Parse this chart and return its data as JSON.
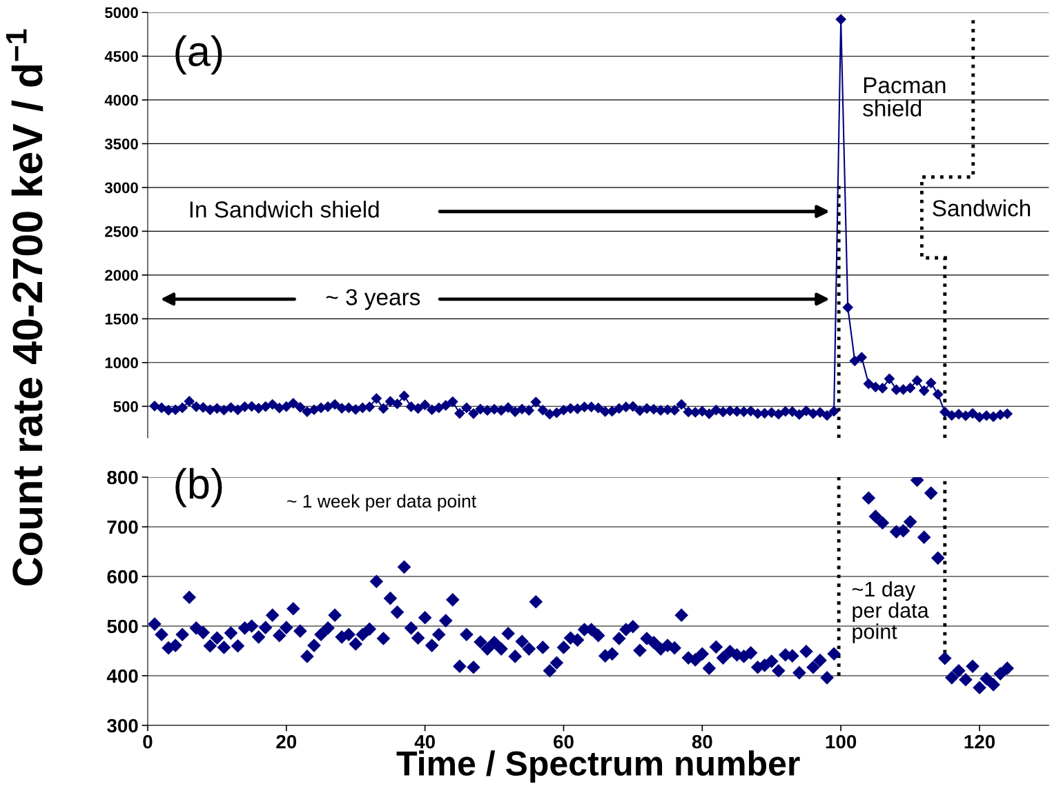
{
  "chart_data": [
    {
      "type": "line",
      "title": "(a)",
      "ylabel": "Count rate 40-2700 keV / d$^{−1}$",
      "marker": "diamond",
      "line_style": "solid",
      "grid": "y",
      "tick_labels": "y",
      "xlim": [
        0,
        130
      ],
      "ylim": [
        140,
        5000
      ],
      "yticks": [
        500,
        1000,
        1500,
        2000,
        2500,
        3000,
        3500,
        4000,
        4500,
        5000
      ],
      "x": [
        1,
        2,
        3,
        4,
        5,
        6,
        7,
        8,
        9,
        10,
        11,
        12,
        13,
        14,
        15,
        16,
        17,
        18,
        19,
        20,
        21,
        22,
        23,
        24,
        25,
        26,
        27,
        28,
        29,
        30,
        31,
        32,
        33,
        34,
        35,
        36,
        37,
        38,
        39,
        40,
        41,
        42,
        43,
        44,
        45,
        46,
        47,
        48,
        49,
        50,
        51,
        52,
        53,
        54,
        55,
        56,
        57,
        58,
        59,
        60,
        61,
        62,
        63,
        64,
        65,
        66,
        67,
        68,
        69,
        70,
        71,
        72,
        73,
        74,
        75,
        76,
        77,
        78,
        79,
        80,
        81,
        82,
        83,
        84,
        85,
        86,
        87,
        88,
        89,
        90,
        91,
        92,
        93,
        94,
        95,
        96,
        97,
        98,
        99,
        100,
        101,
        102,
        103,
        104,
        105,
        106,
        107,
        108,
        109,
        110,
        111,
        112,
        113,
        114,
        115,
        116,
        117,
        118,
        119,
        120,
        121,
        122,
        123,
        124
      ],
      "series": [
        {
          "color": "#000080",
          "values": [
            504,
            483,
            456,
            461,
            483,
            558,
            496,
            487,
            460,
            476,
            457,
            486,
            460,
            496,
            500,
            478,
            497,
            522,
            481,
            497,
            535,
            490,
            439,
            461,
            483,
            496,
            522,
            478,
            483,
            464,
            483,
            494,
            590,
            475,
            556,
            528,
            619,
            496,
            476,
            517,
            461,
            483,
            511,
            553,
            419,
            483,
            417,
            468,
            454,
            467,
            454,
            485,
            439,
            469,
            454,
            549,
            457,
            410,
            426,
            457,
            476,
            472,
            493,
            493,
            481,
            440,
            444,
            475,
            493,
            499,
            451,
            475,
            467,
            454,
            461,
            456,
            522,
            436,
            432,
            444,
            415,
            458,
            436,
            449,
            442,
            439,
            446,
            417,
            421,
            429,
            410,
            442,
            440,
            406,
            449,
            417,
            431,
            396,
            444,
            4920,
            1630,
            1020,
            1060,
            758,
            721,
            708,
            815,
            690,
            692,
            710,
            794,
            679,
            768,
            637,
            435,
            396,
            410,
            392,
            419,
            376,
            394,
            382,
            404,
            415
          ]
        }
      ],
      "annotations": [
        "In Sandwich shield",
        "~ 3 years",
        "Pacman\nshield",
        "Sandwich"
      ],
      "ref_lines": [
        {
          "axis": "x",
          "value": 99.7,
          "line_style": "dotted",
          "color": "#000000"
        },
        {
          "axis": "x",
          "value": 115,
          "line_style": "dotted",
          "color": "#000000"
        }
      ]
    },
    {
      "type": "scatter",
      "title": "(b)",
      "xlabel": "Time / Spectrum number",
      "marker": "diamond",
      "grid": "y",
      "xlim": [
        0,
        130
      ],
      "xticks": [
        0,
        20,
        40,
        60,
        80,
        100,
        120
      ],
      "ylim": [
        300,
        800
      ],
      "yticks": [
        300,
        400,
        500,
        600,
        700,
        800
      ],
      "x": [
        1,
        2,
        3,
        4,
        5,
        6,
        7,
        8,
        9,
        10,
        11,
        12,
        13,
        14,
        15,
        16,
        17,
        18,
        19,
        20,
        21,
        22,
        23,
        24,
        25,
        26,
        27,
        28,
        29,
        30,
        31,
        32,
        33,
        34,
        35,
        36,
        37,
        38,
        39,
        40,
        41,
        42,
        43,
        44,
        45,
        46,
        47,
        48,
        49,
        50,
        51,
        52,
        53,
        54,
        55,
        56,
        57,
        58,
        59,
        60,
        61,
        62,
        63,
        64,
        65,
        66,
        67,
        68,
        69,
        70,
        71,
        72,
        73,
        74,
        75,
        76,
        77,
        78,
        79,
        80,
        81,
        82,
        83,
        84,
        85,
        86,
        87,
        88,
        89,
        90,
        91,
        92,
        93,
        94,
        95,
        96,
        97,
        98,
        99,
        100,
        101,
        102,
        103,
        104,
        105,
        106,
        107,
        108,
        109,
        110,
        111,
        112,
        113,
        114,
        115,
        116,
        117,
        118,
        119,
        120,
        121,
        122,
        123,
        124
      ],
      "series": [
        {
          "color": "#000080",
          "values": [
            504,
            483,
            456,
            461,
            483,
            558,
            496,
            487,
            460,
            476,
            457,
            486,
            460,
            496,
            500,
            478,
            497,
            522,
            481,
            497,
            535,
            490,
            439,
            461,
            483,
            496,
            522,
            478,
            483,
            464,
            483,
            494,
            590,
            475,
            556,
            528,
            619,
            496,
            476,
            517,
            461,
            483,
            511,
            553,
            419,
            483,
            417,
            468,
            454,
            467,
            454,
            485,
            439,
            469,
            454,
            549,
            457,
            410,
            426,
            457,
            476,
            472,
            493,
            493,
            481,
            440,
            444,
            475,
            493,
            499,
            451,
            475,
            467,
            454,
            461,
            456,
            522,
            436,
            432,
            444,
            415,
            458,
            436,
            449,
            442,
            439,
            446,
            417,
            421,
            429,
            410,
            442,
            440,
            406,
            449,
            417,
            431,
            396,
            444,
            null,
            null,
            null,
            null,
            758,
            721,
            708,
            null,
            690,
            692,
            710,
            794,
            679,
            768,
            637,
            435,
            396,
            410,
            392,
            419,
            376,
            394,
            382,
            404,
            415
          ]
        }
      ],
      "annotations": [
        "~ 1 week per data point",
        "~1 day\nper data\npoint"
      ],
      "ref_lines": [
        {
          "axis": "x",
          "value": 99.7,
          "line_style": "dotted",
          "color": "#000000"
        },
        {
          "axis": "x",
          "value": 115,
          "line_style": "dotted",
          "color": "#000000"
        }
      ]
    }
  ]
}
